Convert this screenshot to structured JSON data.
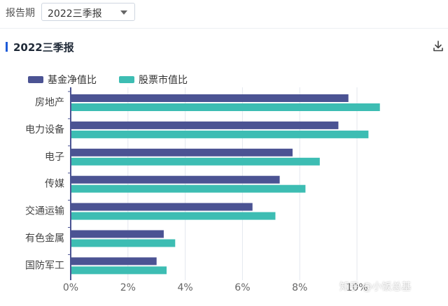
{
  "filter": {
    "label": "报告期",
    "selected": "2022三季报"
  },
  "section": {
    "title": "2022三季报",
    "accent_color": "#1e5bd8",
    "download_icon": "download-icon"
  },
  "colors": {
    "series1": "#4b5393",
    "series2": "#3dbdb3",
    "grid": "#e3e7ee",
    "axis": "#4b5393",
    "tick": "#666666"
  },
  "watermark": "知乎 @小饭总基",
  "chart_data": {
    "type": "bar",
    "orientation": "horizontal",
    "categories": [
      "房地产",
      "电力设备",
      "电子",
      "传媒",
      "交通运输",
      "有色金属",
      "国防军工"
    ],
    "series": [
      {
        "name": "基金净值比",
        "values": [
          9.7,
          9.35,
          7.75,
          7.3,
          6.35,
          3.25,
          3.0
        ]
      },
      {
        "name": "股票市值比",
        "values": [
          10.8,
          10.4,
          8.7,
          8.2,
          7.15,
          3.65,
          3.35
        ]
      }
    ],
    "xlim": [
      0,
      12
    ],
    "xticks": [
      0,
      2,
      4,
      6,
      8,
      10
    ],
    "xtick_labels": [
      "0%",
      "2%",
      "4%",
      "6%",
      "8%",
      "10%"
    ],
    "legend_position": "top-left",
    "grid": true
  }
}
